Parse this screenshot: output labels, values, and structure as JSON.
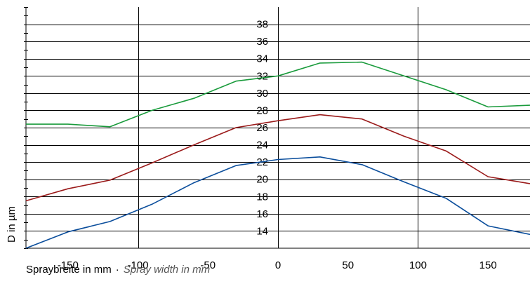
{
  "chart_data": {
    "type": "line",
    "xlabel": "Spraybreite in mm",
    "xlabel_en": "Spray width in mm",
    "xlabel_separator": "·",
    "ylabel": "D in µm",
    "xlim": [
      -180,
      180
    ],
    "ylim": [
      12,
      40
    ],
    "x_ticks": [
      -150,
      -100,
      -50,
      0,
      50,
      100,
      150
    ],
    "x_tick_labels": [
      "-150",
      "-100",
      "-50",
      "0",
      "50",
      "100",
      "150"
    ],
    "y_ticks": [
      14,
      16,
      18,
      20,
      22,
      24,
      26,
      28,
      30,
      32,
      34,
      36,
      38
    ],
    "y_tick_labels": [
      "14",
      "16",
      "18",
      "20",
      "22",
      "24",
      "26",
      "28",
      "30",
      "32",
      "34",
      "36",
      "38"
    ],
    "grid": true,
    "series": [
      {
        "color": "#1a9b3c",
        "x": [
          -180,
          -150,
          -120,
          -90,
          -60,
          -30,
          0,
          30,
          60,
          90,
          120,
          150,
          180
        ],
        "y": [
          26.4,
          26.4,
          26.1,
          28.0,
          29.4,
          31.4,
          32.0,
          33.5,
          33.6,
          32.0,
          30.4,
          28.4,
          28.6
        ]
      },
      {
        "color": "#9b1b1b",
        "x": [
          -180,
          -150,
          -120,
          -90,
          -60,
          -30,
          0,
          30,
          60,
          90,
          120,
          150,
          180
        ],
        "y": [
          17.5,
          18.9,
          19.9,
          21.9,
          24.0,
          26.0,
          26.8,
          27.5,
          27.0,
          25.0,
          23.3,
          20.3,
          19.5
        ]
      },
      {
        "color": "#0b4e9c",
        "x": [
          -180,
          -150,
          -120,
          -90,
          -60,
          -30,
          0,
          30,
          60,
          90,
          120,
          150,
          180
        ],
        "y": [
          12.0,
          13.9,
          15.1,
          17.1,
          19.6,
          21.6,
          22.3,
          22.6,
          21.7,
          19.7,
          17.8,
          14.6,
          13.6
        ]
      }
    ]
  }
}
